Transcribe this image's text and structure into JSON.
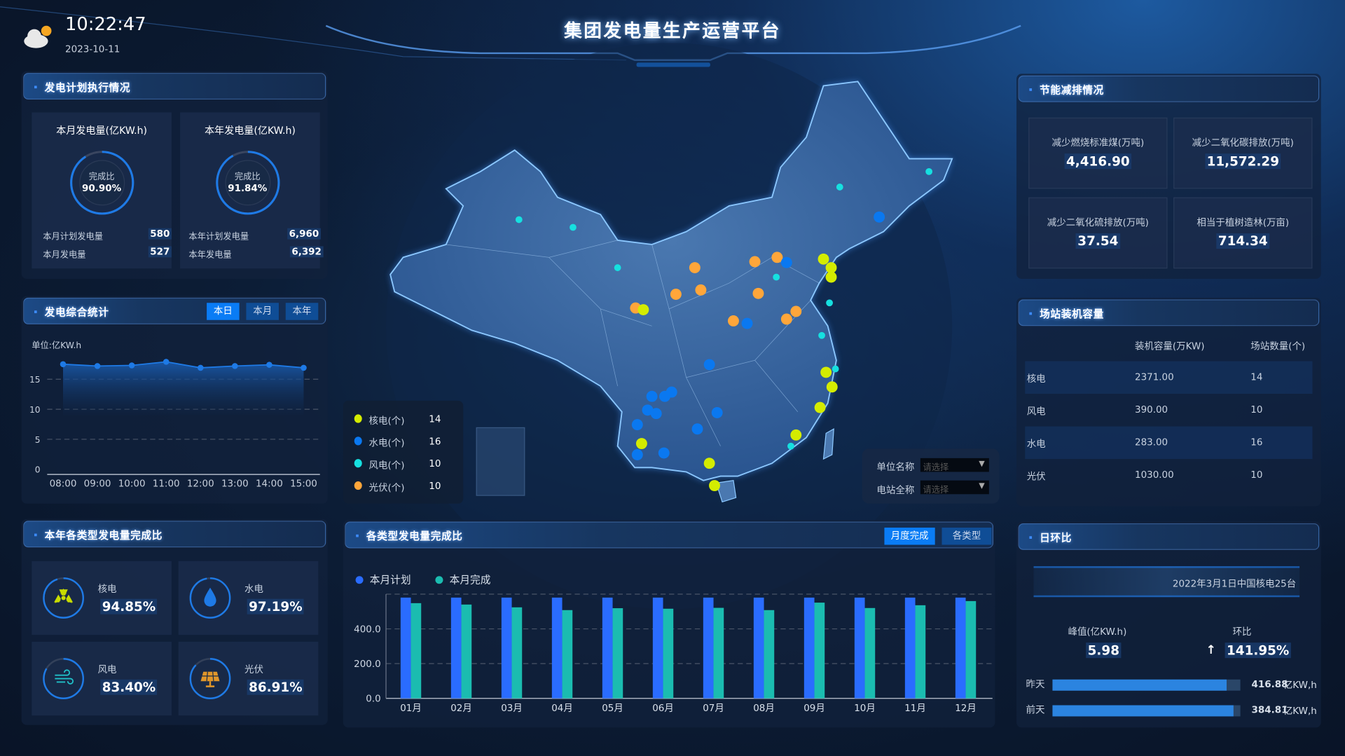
{
  "header": {
    "title": "集团发电量生产运营平台",
    "time": "10:22:47",
    "date": "2023-10-11",
    "weather_icon": "cloud-sun-icon"
  },
  "plan_panel": {
    "title": "发电计划执行情况",
    "month": {
      "title": "本月发电量(亿KW.h)",
      "ring_label": "完成比",
      "ratio": "90.90%",
      "ratio_value": 90.9,
      "plan_label": "本月计划发电量",
      "plan": "580",
      "actual_label": "本月发电量",
      "actual": "527"
    },
    "year": {
      "title": "本年发电量(亿KW.h)",
      "ring_label": "完成比",
      "ratio": "91.84%",
      "ratio_value": 91.84,
      "plan_label": "本年计划发电量",
      "plan": "6,960",
      "actual_label": "本年发电量",
      "actual": "6,392"
    }
  },
  "stats_panel": {
    "title": "发电综合统计",
    "tabs": [
      "本日",
      "本月",
      "本年"
    ],
    "active_tab": 0
  },
  "chart_data": [
    {
      "type": "area",
      "ylabel": "单位:亿KW.h",
      "categories": [
        "08:00",
        "09:00",
        "10:00",
        "11:00",
        "12:00",
        "13:00",
        "14:00",
        "15:00"
      ],
      "values": [
        17.5,
        17.2,
        17.3,
        17.9,
        16.9,
        17.2,
        17.4,
        16.9
      ],
      "ylim": [
        0,
        20
      ],
      "yticks": [
        0,
        5,
        10,
        15
      ],
      "grid": true,
      "color": "#1e7ae6"
    },
    {
      "type": "bar",
      "categories": [
        "01月",
        "02月",
        "03月",
        "04月",
        "05月",
        "06月",
        "07月",
        "08月",
        "09月",
        "10月",
        "11月",
        "12月"
      ],
      "series": [
        {
          "name": "本月计划",
          "color": "#2a6cff",
          "values": [
            580,
            580,
            580,
            580,
            580,
            580,
            580,
            580,
            580,
            580,
            580,
            580
          ]
        },
        {
          "name": "本月完成",
          "color": "#1bbcb0",
          "values": [
            548,
            540,
            524,
            508,
            519,
            516,
            521,
            508,
            551,
            520,
            536,
            560
          ]
        }
      ],
      "ylim": [
        0,
        600
      ],
      "yticks": [
        "0.0",
        "200.0",
        "400.0"
      ],
      "grid": true,
      "legend": "top-left"
    }
  ],
  "type_panel": {
    "title": "本年各类型发电量完成比",
    "items": [
      {
        "name": "核电",
        "ratio": "94.85%",
        "value": 94.85,
        "icon": "radiation-icon"
      },
      {
        "name": "水电",
        "ratio": "97.19%",
        "value": 97.19,
        "icon": "water-drop-icon"
      },
      {
        "name": "风电",
        "ratio": "83.40%",
        "value": 83.4,
        "icon": "wind-icon"
      },
      {
        "name": "光伏",
        "ratio": "86.91%",
        "value": 86.91,
        "icon": "solar-panel-icon"
      }
    ]
  },
  "map": {
    "legend": [
      {
        "label": "核电(个)",
        "count": "14",
        "color": "#d4ec00"
      },
      {
        "label": "水电(个)",
        "count": "16",
        "color": "#0a78f0"
      },
      {
        "label": "风电(个)",
        "count": "10",
        "color": "#16e0e0"
      },
      {
        "label": "光伏(个)",
        "count": "10",
        "color": "#ffa63a"
      }
    ],
    "filters": [
      {
        "label": "单位名称",
        "placeholder": "请选择"
      },
      {
        "label": "电站全称",
        "placeholder": "请选择"
      }
    ]
  },
  "bar_panel": {
    "title": "各类型发电量完成比",
    "tabs": [
      "月度完成",
      "各类型"
    ],
    "active_tab": 0
  },
  "energy_panel": {
    "title": "节能减排情况",
    "items": [
      {
        "label": "减少燃烧标准煤(万吨)",
        "value": "4,416.90"
      },
      {
        "label": "减少二氧化碳排放(万吨)",
        "value": "11,572.29"
      },
      {
        "label": "减少二氧化硫排放(万吨)",
        "value": "37.54"
      },
      {
        "label": "相当于植树造林(万亩)",
        "value": "714.34"
      }
    ]
  },
  "capacity_panel": {
    "title": "场站装机容量",
    "columns": [
      "",
      "装机容量(万KW)",
      "场站数量(个)"
    ],
    "rows": [
      [
        "核电",
        "2371.00",
        "14"
      ],
      [
        "风电",
        "390.00",
        "10"
      ],
      [
        "水电",
        "283.00",
        "16"
      ],
      [
        "光伏",
        "1030.00",
        "10"
      ]
    ]
  },
  "daily_panel": {
    "title": "日环比",
    "ticker": "2022年3月1日中国核电25台",
    "peak_label": "峰值(亿KW.h)",
    "peak": "5.98",
    "ratio_label": "环比",
    "ratio": "141.95%",
    "trend": "up-arrow-icon",
    "bars": [
      {
        "label": "昨天",
        "value": "416.88",
        "unit": "亿KW,h",
        "fill": 0.927
      },
      {
        "label": "前天",
        "value": "384.81",
        "unit": "亿KW,h",
        "fill": 0.963
      }
    ]
  }
}
